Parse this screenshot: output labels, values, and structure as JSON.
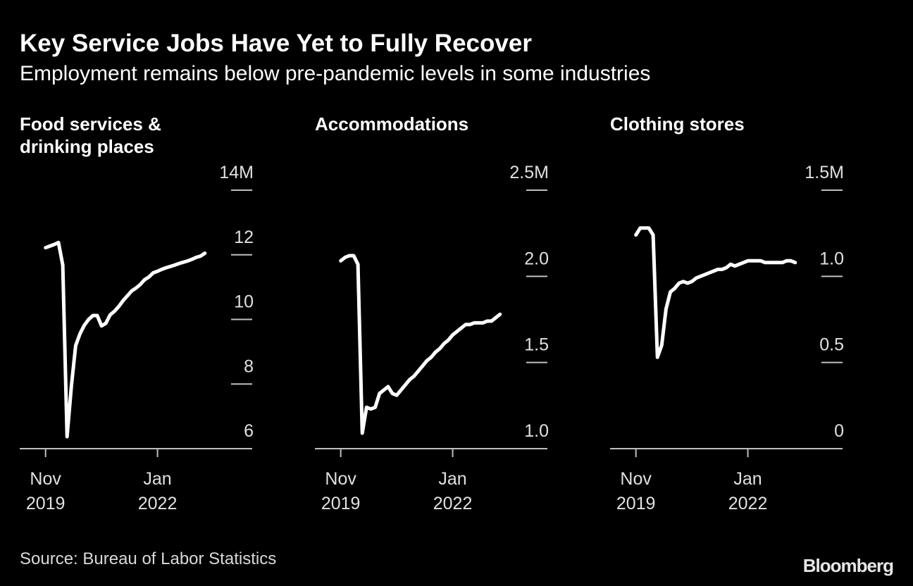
{
  "title": "Key Service Jobs Have Yet to Fully Recover",
  "subtitle": "Employment remains below pre-pandemic levels in some industries",
  "source": "Source: Bureau of Labor Statistics",
  "brand": "Bloomberg",
  "chart_data": [
    {
      "type": "line",
      "title": "Food services & drinking places",
      "color": "#ffffff",
      "x": [
        "2019-11",
        "2019-12",
        "2020-01",
        "2020-02",
        "2020-03",
        "2020-04",
        "2020-05",
        "2020-06",
        "2020-07",
        "2020-08",
        "2020-09",
        "2020-10",
        "2020-11",
        "2020-12",
        "2021-01",
        "2021-02",
        "2021-03",
        "2021-04",
        "2021-05",
        "2021-06",
        "2021-07",
        "2021-08",
        "2021-09",
        "2021-10",
        "2021-11",
        "2021-12",
        "2022-01",
        "2022-02",
        "2022-03",
        "2022-04",
        "2022-05",
        "2022-06",
        "2022-07",
        "2022-08",
        "2022-09",
        "2022-10",
        "2022-11",
        "2022-12"
      ],
      "values": [
        12.22,
        12.27,
        12.32,
        12.38,
        11.68,
        6.37,
        7.93,
        9.19,
        9.56,
        9.82,
        10.0,
        10.12,
        10.12,
        9.8,
        9.88,
        10.14,
        10.25,
        10.4,
        10.58,
        10.73,
        10.88,
        10.97,
        11.08,
        11.23,
        11.31,
        11.44,
        11.49,
        11.55,
        11.6,
        11.64,
        11.68,
        11.73,
        11.77,
        11.81,
        11.86,
        11.92,
        11.96,
        12.05
      ],
      "xlim": [
        "2019-05",
        "2023-11"
      ],
      "xticks": [
        {
          "value": "2019-11",
          "label": [
            "Nov",
            "2019"
          ]
        },
        {
          "value": "2022-01",
          "label": [
            "Jan",
            "2022"
          ]
        }
      ],
      "ylim": [
        6,
        14
      ],
      "yticks": [
        6,
        8,
        10,
        12,
        {
          "value": 14,
          "label": "14M"
        }
      ]
    },
    {
      "type": "line",
      "title": "Accommodations",
      "color": "#ffffff",
      "x": [
        "2019-11",
        "2019-12",
        "2020-01",
        "2020-02",
        "2020-03",
        "2020-04",
        "2020-05",
        "2020-06",
        "2020-07",
        "2020-08",
        "2020-09",
        "2020-10",
        "2020-11",
        "2020-12",
        "2021-01",
        "2021-02",
        "2021-03",
        "2021-04",
        "2021-05",
        "2021-06",
        "2021-07",
        "2021-08",
        "2021-09",
        "2021-10",
        "2021-11",
        "2021-12",
        "2022-01",
        "2022-02",
        "2022-03",
        "2022-04",
        "2022-05",
        "2022-06",
        "2022-07",
        "2022-08",
        "2022-09",
        "2022-10",
        "2022-11",
        "2022-12"
      ],
      "values": [
        2.09,
        2.11,
        2.12,
        2.12,
        2.07,
        1.09,
        1.24,
        1.23,
        1.24,
        1.32,
        1.34,
        1.36,
        1.32,
        1.31,
        1.34,
        1.37,
        1.4,
        1.42,
        1.45,
        1.48,
        1.51,
        1.53,
        1.56,
        1.58,
        1.61,
        1.63,
        1.66,
        1.68,
        1.7,
        1.72,
        1.72,
        1.73,
        1.73,
        1.73,
        1.74,
        1.74,
        1.76,
        1.78
      ],
      "xlim": [
        "2019-05",
        "2023-11"
      ],
      "xticks": [
        {
          "value": "2019-11",
          "label": [
            "Nov",
            "2019"
          ]
        },
        {
          "value": "2022-01",
          "label": [
            "Jan",
            "2022"
          ]
        }
      ],
      "ylim": [
        1,
        2.5
      ],
      "yticks": [
        {
          "value": 1,
          "label": "1.0"
        },
        1.5,
        {
          "value": 2,
          "label": "2.0"
        },
        {
          "value": 2.5,
          "label": "2.5M"
        }
      ]
    },
    {
      "type": "line",
      "title": "Clothing stores",
      "color": "#ffffff",
      "x": [
        "2019-11",
        "2019-12",
        "2020-01",
        "2020-02",
        "2020-03",
        "2020-04",
        "2020-05",
        "2020-06",
        "2020-07",
        "2020-08",
        "2020-09",
        "2020-10",
        "2020-11",
        "2020-12",
        "2021-01",
        "2021-02",
        "2021-03",
        "2021-04",
        "2021-05",
        "2021-06",
        "2021-07",
        "2021-08",
        "2021-09",
        "2021-10",
        "2021-11",
        "2021-12",
        "2022-01",
        "2022-02",
        "2022-03",
        "2022-04",
        "2022-05",
        "2022-06",
        "2022-07",
        "2022-08",
        "2022-09",
        "2022-10",
        "2022-11",
        "2022-12"
      ],
      "values": [
        1.24,
        1.28,
        1.28,
        1.28,
        1.24,
        0.53,
        0.6,
        0.81,
        0.91,
        0.93,
        0.96,
        0.97,
        0.96,
        0.97,
        0.99,
        1.0,
        1.01,
        1.02,
        1.03,
        1.04,
        1.04,
        1.05,
        1.07,
        1.06,
        1.07,
        1.08,
        1.09,
        1.09,
        1.09,
        1.09,
        1.08,
        1.08,
        1.08,
        1.08,
        1.08,
        1.09,
        1.09,
        1.08
      ],
      "xlim": [
        "2019-05",
        "2023-11"
      ],
      "xticks": [
        {
          "value": "2019-11",
          "label": [
            "Nov",
            "2019"
          ]
        },
        {
          "value": "2022-01",
          "label": [
            "Jan",
            "2022"
          ]
        }
      ],
      "ylim": [
        0,
        1.5
      ],
      "yticks": [
        0,
        0.5,
        {
          "value": 1,
          "label": "1.0"
        },
        {
          "value": 1.5,
          "label": "1.5M"
        }
      ]
    }
  ]
}
